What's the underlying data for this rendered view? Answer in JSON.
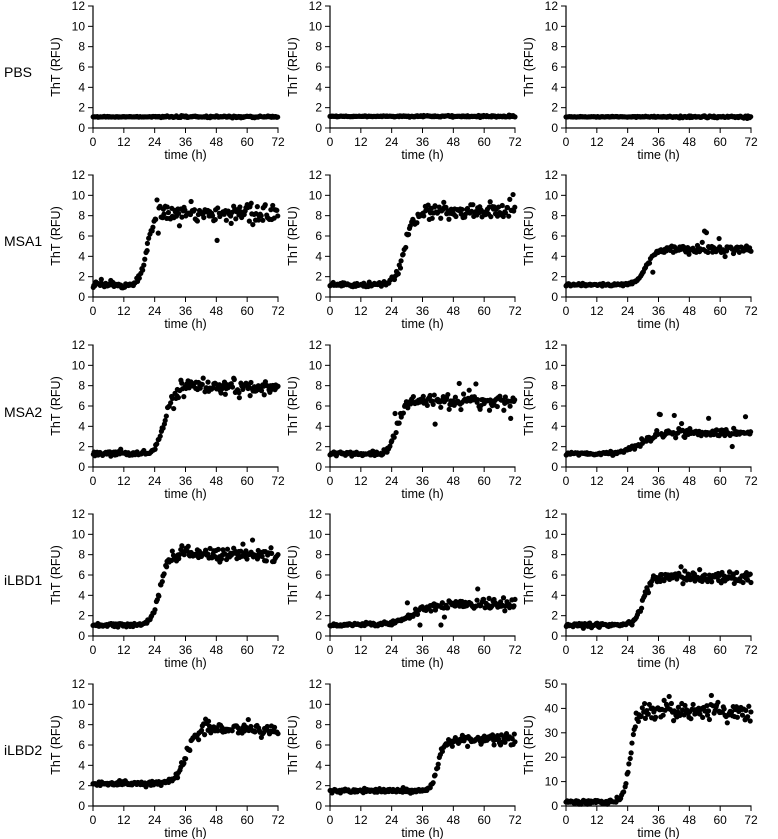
{
  "figure": {
    "rows": [
      "PBS",
      "MSA1",
      "MSA2",
      "iLBD1",
      "iLBD2"
    ],
    "xlabel": "time (h)",
    "ylabel": "ThT (RFU)"
  },
  "chart_data": [
    {
      "type": "scatter",
      "title": "PBS",
      "xlabel": "time (h)",
      "ylabel": "ThT (RFU)",
      "xlim": [
        0,
        72
      ],
      "ylim": [
        0,
        12
      ],
      "xticks": [
        0,
        12,
        24,
        36,
        48,
        60,
        72
      ],
      "yticks": [
        0,
        2,
        4,
        6,
        8,
        10,
        12
      ],
      "model": {
        "base": 1.1,
        "plateau": 1.1,
        "t_mid": 30,
        "width": 3,
        "noise": 0.05,
        "outlier_rate": 0,
        "outlier_amp": 0
      }
    },
    {
      "type": "scatter",
      "title": "PBS",
      "xlabel": "time (h)",
      "ylabel": "ThT (RFU)",
      "xlim": [
        0,
        72
      ],
      "ylim": [
        0,
        12
      ],
      "xticks": [
        0,
        12,
        24,
        36,
        48,
        60,
        72
      ],
      "yticks": [
        0,
        2,
        4,
        6,
        8,
        10,
        12
      ],
      "model": {
        "base": 1.15,
        "plateau": 1.15,
        "t_mid": 30,
        "width": 3,
        "noise": 0.05,
        "outlier_rate": 0,
        "outlier_amp": 0
      }
    },
    {
      "type": "scatter",
      "title": "PBS",
      "xlabel": "time (h)",
      "ylabel": "ThT (RFU)",
      "xlim": [
        0,
        72
      ],
      "ylim": [
        0,
        12
      ],
      "xticks": [
        0,
        12,
        24,
        36,
        48,
        60,
        72
      ],
      "yticks": [
        0,
        2,
        4,
        6,
        8,
        10,
        12
      ],
      "model": {
        "base": 1.1,
        "plateau": 1.1,
        "t_mid": 30,
        "width": 3,
        "noise": 0.05,
        "outlier_rate": 0,
        "outlier_amp": 0
      }
    },
    {
      "type": "scatter",
      "title": "MSA1",
      "xlabel": "time (h)",
      "ylabel": "ThT (RFU)",
      "xlim": [
        0,
        72
      ],
      "ylim": [
        0,
        12
      ],
      "xticks": [
        0,
        12,
        24,
        36,
        48,
        60,
        72
      ],
      "yticks": [
        0,
        2,
        4,
        6,
        8,
        10,
        12
      ],
      "model": {
        "base": 1.2,
        "plateau": 8.2,
        "t_mid": 21,
        "width": 1.4,
        "noise": 0.45,
        "outlier_rate": 0.07,
        "outlier_amp": 1.8
      }
    },
    {
      "type": "scatter",
      "title": "MSA1",
      "xlabel": "time (h)",
      "ylabel": "ThT (RFU)",
      "xlim": [
        0,
        72
      ],
      "ylim": [
        0,
        12
      ],
      "xticks": [
        0,
        12,
        24,
        36,
        48,
        60,
        72
      ],
      "yticks": [
        0,
        2,
        4,
        6,
        8,
        10,
        12
      ],
      "model": {
        "base": 1.2,
        "plateau": 8.4,
        "t_mid": 29,
        "width": 1.8,
        "noise": 0.35,
        "outlier_rate": 0.04,
        "outlier_amp": 1.0
      }
    },
    {
      "type": "scatter",
      "title": "MSA1",
      "xlabel": "time (h)",
      "ylabel": "ThT (RFU)",
      "xlim": [
        0,
        72
      ],
      "ylim": [
        0,
        12
      ],
      "xticks": [
        0,
        12,
        24,
        36,
        48,
        60,
        72
      ],
      "yticks": [
        0,
        2,
        4,
        6,
        8,
        10,
        12
      ],
      "model": {
        "base": 1.2,
        "plateau": 4.7,
        "t_mid": 31,
        "width": 1.8,
        "noise": 0.2,
        "outlier_rate": 0.03,
        "outlier_amp": 1.5
      }
    },
    {
      "type": "scatter",
      "title": "MSA2",
      "xlabel": "time (h)",
      "ylabel": "ThT (RFU)",
      "xlim": [
        0,
        72
      ],
      "ylim": [
        0,
        12
      ],
      "xticks": [
        0,
        12,
        24,
        36,
        48,
        60,
        72
      ],
      "yticks": [
        0,
        2,
        4,
        6,
        8,
        10,
        12
      ],
      "model": {
        "base": 1.3,
        "plateau": 7.8,
        "t_mid": 28,
        "width": 1.7,
        "noise": 0.35,
        "outlier_rate": 0.06,
        "outlier_amp": 1.8
      }
    },
    {
      "type": "scatter",
      "title": "MSA2",
      "xlabel": "time (h)",
      "ylabel": "ThT (RFU)",
      "xlim": [
        0,
        72
      ],
      "ylim": [
        0,
        12
      ],
      "xticks": [
        0,
        12,
        24,
        36,
        48,
        60,
        72
      ],
      "yticks": [
        0,
        2,
        4,
        6,
        8,
        10,
        12
      ],
      "model": {
        "base": 1.3,
        "plateau": 6.5,
        "t_mid": 26,
        "width": 1.6,
        "noise": 0.3,
        "outlier_rate": 0.08,
        "outlier_amp": 1.6
      }
    },
    {
      "type": "scatter",
      "title": "MSA2",
      "xlabel": "time (h)",
      "ylabel": "ThT (RFU)",
      "xlim": [
        0,
        72
      ],
      "ylim": [
        0,
        12
      ],
      "xticks": [
        0,
        12,
        24,
        36,
        48,
        60,
        72
      ],
      "yticks": [
        0,
        2,
        4,
        6,
        8,
        10,
        12
      ],
      "model": {
        "base": 1.3,
        "plateau": 3.4,
        "t_mid": 29,
        "width": 3.5,
        "noise": 0.2,
        "outlier_rate": 0.06,
        "outlier_amp": 2.2
      }
    },
    {
      "type": "scatter",
      "title": "iLBD1",
      "xlabel": "time (h)",
      "ylabel": "ThT (RFU)",
      "xlim": [
        0,
        72
      ],
      "ylim": [
        0,
        12
      ],
      "xticks": [
        0,
        12,
        24,
        36,
        48,
        60,
        72
      ],
      "yticks": [
        0,
        2,
        4,
        6,
        8,
        10,
        12
      ],
      "model": {
        "base": 1.1,
        "plateau": 8.0,
        "t_mid": 26,
        "width": 1.5,
        "noise": 0.3,
        "outlier_rate": 0.04,
        "outlier_amp": 1.2
      }
    },
    {
      "type": "scatter",
      "title": "iLBD1",
      "xlabel": "time (h)",
      "ylabel": "ThT (RFU)",
      "xlim": [
        0,
        72
      ],
      "ylim": [
        0,
        12
      ],
      "xticks": [
        0,
        12,
        24,
        36,
        48,
        60,
        72
      ],
      "yticks": [
        0,
        2,
        4,
        6,
        8,
        10,
        12
      ],
      "model": {
        "base": 1.1,
        "plateau": 3.1,
        "t_mid": 32,
        "width": 3.5,
        "noise": 0.25,
        "outlier_rate": 0.09,
        "outlier_amp": 1.6
      }
    },
    {
      "type": "scatter",
      "title": "iLBD1",
      "xlabel": "time (h)",
      "ylabel": "ThT (RFU)",
      "xlim": [
        0,
        72
      ],
      "ylim": [
        0,
        12
      ],
      "xticks": [
        0,
        12,
        24,
        36,
        48,
        60,
        72
      ],
      "yticks": [
        0,
        2,
        4,
        6,
        8,
        10,
        12
      ],
      "model": {
        "base": 1.1,
        "plateau": 5.8,
        "t_mid": 30,
        "width": 1.6,
        "noise": 0.3,
        "outlier_rate": 0.05,
        "outlier_amp": 1.0
      }
    },
    {
      "type": "scatter",
      "title": "iLBD2",
      "xlabel": "time (h)",
      "ylabel": "ThT (RFU)",
      "xlim": [
        0,
        72
      ],
      "ylim": [
        0,
        12
      ],
      "xticks": [
        0,
        12,
        24,
        36,
        48,
        60,
        72
      ],
      "yticks": [
        0,
        2,
        4,
        6,
        8,
        10,
        12
      ],
      "model": {
        "base": 2.2,
        "plateau": 7.6,
        "t_mid": 36,
        "width": 2.0,
        "noise": 0.3,
        "outlier_rate": 0.03,
        "outlier_amp": 0.8
      }
    },
    {
      "type": "scatter",
      "title": "iLBD2",
      "xlabel": "time (h)",
      "ylabel": "ThT (RFU)",
      "xlim": [
        0,
        72
      ],
      "ylim": [
        0,
        12
      ],
      "xticks": [
        0,
        12,
        24,
        36,
        48,
        60,
        72
      ],
      "yticks": [
        0,
        2,
        4,
        6,
        8,
        10,
        12
      ],
      "model": {
        "base": 1.5,
        "plateau": 6.5,
        "t_mid": 42,
        "width": 1.3,
        "noise": 0.3,
        "outlier_rate": 0.03,
        "outlier_amp": 1.0
      }
    },
    {
      "type": "scatter",
      "title": "iLBD2",
      "xlabel": "time (h)",
      "ylabel": "ThT (RFU)",
      "xlim": [
        0,
        72
      ],
      "ylim": [
        0,
        50
      ],
      "xticks": [
        0,
        12,
        24,
        36,
        48,
        60,
        72
      ],
      "yticks": [
        0,
        10,
        20,
        30,
        40,
        50
      ],
      "model": {
        "base": 1.5,
        "plateau": 39,
        "t_mid": 25,
        "width": 1.3,
        "noise": 1.5,
        "outlier_rate": 0.1,
        "outlier_amp": 5
      }
    }
  ]
}
